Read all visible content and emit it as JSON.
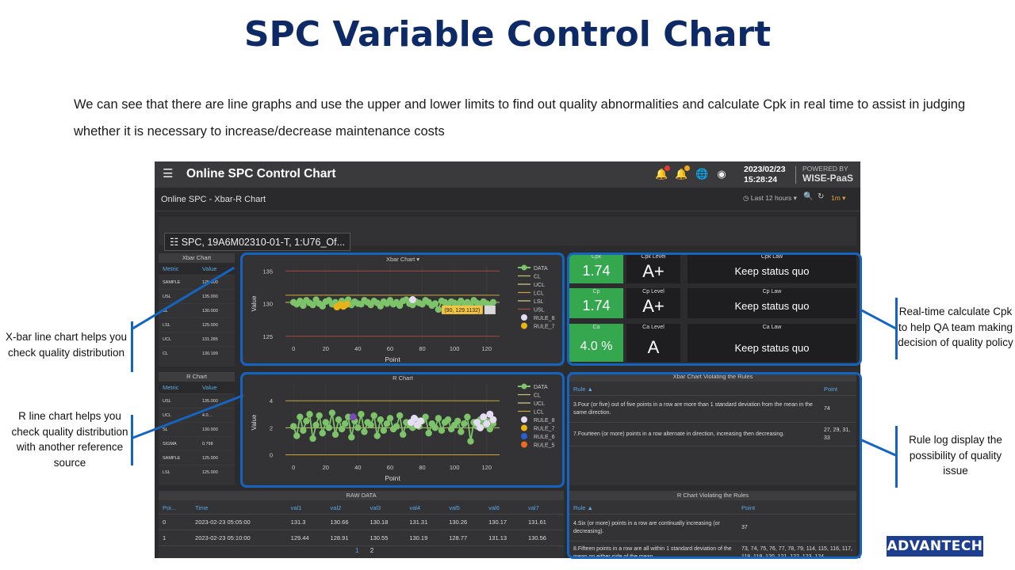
{
  "slide": {
    "title": "SPC Variable Control Chart",
    "description": "We can see that there are line graphs and use the upper and lower limits to find out quality abnormalities and calculate Cpk in real time to assist in judging whether it is necessary to increase/decrease maintenance costs",
    "logo": "ADVANTECH"
  },
  "callouts": {
    "xbar": "X-bar line chart helps you check quality distribution",
    "r": "R line chart helps you check quality distribution with another reference source",
    "cpk": "Real-time calculate Cpk to help QA team making decision of quality policy",
    "rules": "Rule log display the possibility of quality issue"
  },
  "app": {
    "title": "Online SPC Control Chart",
    "date": "2023/02/23",
    "time": "15:28:24",
    "powered_by": "POWERED BY",
    "brand": "WISE-PaaS",
    "icons": [
      "bell-icon",
      "bell-icon",
      "globe-icon",
      "user-icon",
      "menu-icon"
    ],
    "subtitle": "Online SPC - Xbar-R Chart",
    "time_range": "Last 12 hours",
    "refresh": "1m",
    "device": "SPC, 19A6M02310-01-T, 1:U76_Of..."
  },
  "xbar_table": {
    "title": "Xbar Chart",
    "headers": [
      "Metric",
      "Value"
    ],
    "rows": [
      [
        "SAMPLE",
        "125.000"
      ],
      [
        "USL",
        "135.000"
      ],
      [
        "SL",
        "130.000"
      ],
      [
        "LSL",
        "125.000"
      ],
      [
        "UCL",
        "131.285"
      ],
      [
        "CL",
        "130.199"
      ]
    ]
  },
  "r_table": {
    "title": "R Chart",
    "headers": [
      "Metric",
      "Value"
    ],
    "rows": [
      [
        "USL",
        "135.000"
      ],
      [
        "UCL",
        "4.0…"
      ],
      [
        "SL",
        "130.000"
      ],
      [
        "SIGMA",
        "0.798"
      ],
      [
        "SAMPLE",
        "125.000"
      ],
      [
        "LSL",
        "125.000"
      ]
    ]
  },
  "xbar_chart": {
    "title": "Xbar Chart",
    "tooltip": "(90, 129.1132)",
    "legend": [
      "DATA",
      "CL",
      "UCL",
      "LCL",
      "LSL",
      "USL",
      "RULE_8",
      "RULE_7"
    ]
  },
  "r_chart": {
    "title": "R Chart",
    "legend": [
      "DATA",
      "CL",
      "UCL",
      "LCL",
      "RULE_8",
      "RULE_7",
      "RULE_6",
      "RULE_5"
    ]
  },
  "kpis": [
    {
      "label": "Cpk",
      "value": "1.74",
      "level_label": "Cpk Level",
      "level": "A+",
      "law_label": "Cpk Law",
      "law": "Keep status quo"
    },
    {
      "label": "Cp",
      "value": "1.74",
      "level_label": "Cp Level",
      "level": "A+",
      "law_label": "Cp Law",
      "law": "Keep status quo"
    },
    {
      "label": "Ca",
      "value": "4.0 %",
      "level_label": "Ca Level",
      "level": "A",
      "law_label": "Ca Law",
      "law": "Keep status quo"
    }
  ],
  "xbar_rules": {
    "title": "Xbar Chart Violating the Rules",
    "headers": [
      "Rule",
      "Point"
    ],
    "rows": [
      [
        "3.Four (or five) out of five points in a row are more than 1 standard deviation from the mean in the same direction.",
        "74"
      ],
      [
        "7.Fourteen (or more) points in a row alternate in direction, increasing then decreasing.",
        "27, 29, 31, 33"
      ]
    ]
  },
  "r_rules": {
    "title": "R Chart Violating the Rules",
    "headers": [
      "Rule",
      "Point"
    ],
    "rows": [
      [
        "4.Six (or more) points in a row are continually increasing (or decreasing).",
        "37"
      ],
      [
        "8.Fifteen points in a row are all within 1 standard deviation of the mean on either side of the mean",
        "73, 74, 75, 76, 77, 78, 79, 114, 115, 116, 117, 118, 119, 120, 121, 122, 123, 124"
      ]
    ]
  },
  "raw_data": {
    "title": "RAW DATA",
    "headers": [
      "Poi...",
      "Time",
      "val1",
      "val2",
      "val3",
      "val4",
      "val5",
      "val6",
      "val7"
    ],
    "rows": [
      [
        "0",
        "2023-02-23 05:05:00",
        "131.3",
        "130.66",
        "130.18",
        "131.31",
        "130.26",
        "130.17",
        "131.61"
      ],
      [
        "1",
        "2023-02-23 05:10:00",
        "129.44",
        "128.91",
        "130.55",
        "130.19",
        "128.77",
        "131.13",
        "130.56"
      ]
    ],
    "pages": [
      "1",
      "2"
    ]
  },
  "chart_data": [
    {
      "type": "scatter",
      "title": "Xbar Chart",
      "xlabel": "Point",
      "ylabel": "Value",
      "xlim": [
        -5,
        128
      ],
      "ylim": [
        124,
        136
      ],
      "xticks": [
        0,
        20,
        40,
        60,
        80,
        100,
        120
      ],
      "yticks": [
        125,
        130,
        135
      ],
      "lines": {
        "USL": 135,
        "UCL": 131.285,
        "CL": 130.199,
        "LSL": 125
      },
      "series": [
        {
          "name": "DATA",
          "color": "#7cc36a",
          "x": [
            0,
            2,
            4,
            6,
            8,
            10,
            12,
            14,
            16,
            18,
            20,
            22,
            24,
            26,
            28,
            30,
            32,
            34,
            36,
            38,
            40,
            42,
            44,
            46,
            48,
            50,
            52,
            54,
            56,
            58,
            60,
            62,
            64,
            66,
            68,
            70,
            72,
            74,
            76,
            78,
            80,
            82,
            84,
            86,
            88,
            90,
            92,
            94,
            96,
            98,
            100,
            102,
            104,
            106,
            108,
            110,
            112,
            114,
            116,
            118,
            120,
            122,
            124
          ],
          "y": [
            130.2,
            129.9,
            130.4,
            129.7,
            130.5,
            130.1,
            129.8,
            130.6,
            130.0,
            129.6,
            130.3,
            130.5,
            129.9,
            130.2,
            129.7,
            130.4,
            130.1,
            130.6,
            129.8,
            130.3,
            130.0,
            129.9,
            130.5,
            130.2,
            129.8,
            130.4,
            130.1,
            129.6,
            130.3,
            130.0,
            130.5,
            129.9,
            130.2,
            129.7,
            130.4,
            130.6,
            130.0,
            129.8,
            130.3,
            130.1,
            129.9,
            130.5,
            130.2,
            129.7,
            130.0,
            129.1,
            130.4,
            130.2,
            129.8,
            130.3,
            130.1,
            129.9,
            130.4,
            130.0,
            130.2,
            129.8,
            130.5,
            130.1,
            129.9,
            130.3,
            130.0,
            129.8,
            130.2
          ]
        },
        {
          "name": "RULE_7",
          "color": "#e8b317",
          "x": [
            27,
            29,
            31,
            33
          ],
          "y": [
            129.5,
            129.8,
            129.6,
            129.9
          ]
        },
        {
          "name": "RULE_8",
          "color": "#e6ddf5",
          "x": [
            74
          ],
          "y": [
            130.6
          ]
        }
      ]
    },
    {
      "type": "scatter",
      "title": "R Chart",
      "xlabel": "Point",
      "ylabel": "Value",
      "xlim": [
        -5,
        128
      ],
      "ylim": [
        -0.5,
        5.3
      ],
      "xticks": [
        0,
        20,
        40,
        60,
        80,
        100,
        120
      ],
      "yticks": [
        0,
        2,
        4
      ],
      "lines": {
        "UCL": 4.0,
        "CL": 2.0,
        "LCL": 0
      },
      "series": [
        {
          "name": "DATA",
          "color": "#7cc36a",
          "x": [
            0,
            2,
            4,
            6,
            8,
            10,
            12,
            14,
            16,
            18,
            20,
            22,
            24,
            26,
            28,
            30,
            32,
            34,
            36,
            38,
            40,
            42,
            44,
            46,
            48,
            50,
            52,
            54,
            56,
            58,
            60,
            62,
            64,
            66,
            68,
            70,
            72,
            74,
            76,
            78,
            80,
            82,
            84,
            86,
            88,
            90,
            92,
            94,
            96,
            98,
            100,
            102,
            104,
            106,
            108,
            110,
            112,
            114,
            116,
            118,
            120,
            122,
            124
          ],
          "y": [
            2.1,
            1.4,
            2.8,
            1.8,
            2.5,
            3.0,
            1.2,
            2.2,
            2.9,
            1.6,
            2.4,
            2.0,
            3.1,
            1.5,
            2.6,
            1.9,
            2.3,
            2.8,
            1.3,
            2.5,
            2.0,
            3.0,
            1.7,
            2.4,
            2.2,
            2.9,
            1.4,
            2.6,
            1.8,
            2.3,
            2.7,
            1.9,
            2.1,
            2.9,
            1.5,
            2.4,
            2.2,
            2.0,
            2.6,
            2.1,
            2.5,
            2.8,
            1.6,
            2.3,
            2.0,
            2.7,
            1.8,
            2.4,
            2.6,
            1.9,
            2.2,
            2.5,
            1.7,
            2.3,
            2.8,
            1.0,
            2.4,
            2.1,
            2.6,
            2.2,
            2.5,
            1.9,
            2.3
          ]
        },
        {
          "name": "RULE_8",
          "color": "#e6ddf5",
          "x": [
            73,
            75,
            77,
            79,
            114,
            116,
            118,
            120,
            122,
            124
          ],
          "y": [
            2.4,
            2.7,
            2.2,
            2.5,
            2.4,
            2.0,
            2.8,
            2.3,
            3.0,
            2.6
          ]
        },
        {
          "name": "RULE_6",
          "color": "#7b4ab8",
          "x": [
            37
          ],
          "y": [
            2.8
          ]
        }
      ]
    }
  ]
}
